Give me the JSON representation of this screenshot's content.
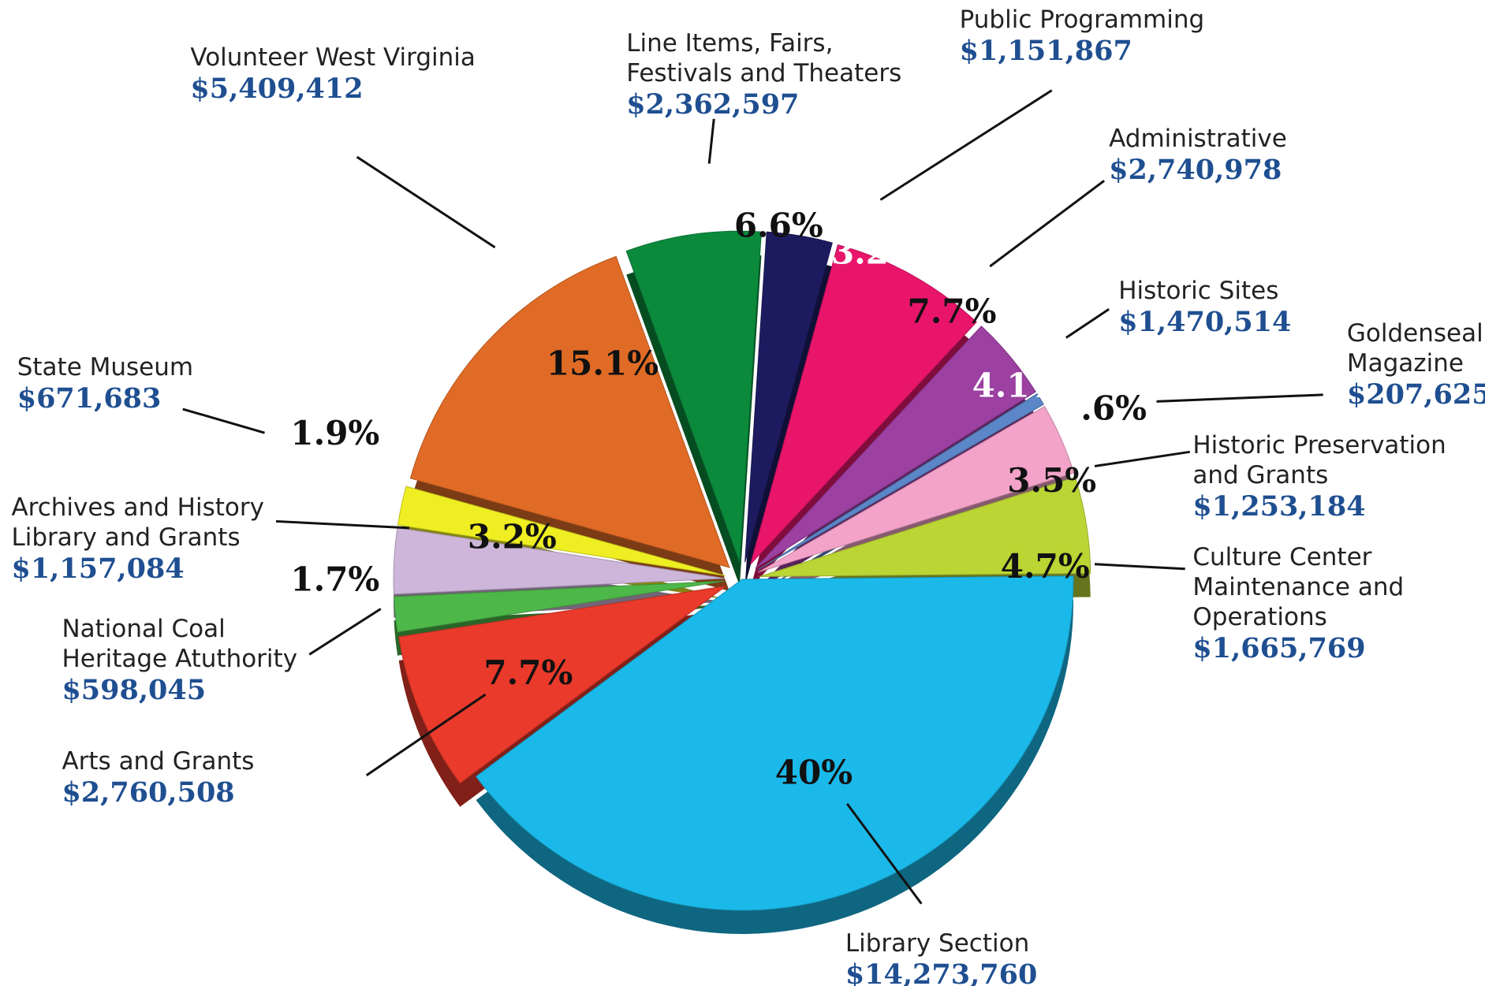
{
  "chart_data": {
    "type": "pie",
    "categories": [
      "Line Items, Fairs, Festivals and Theaters",
      "Public Programming",
      "Administrative",
      "Historic Sites",
      "Goldenseal Magazine",
      "Historic Preservation and Grants",
      "Culture Center Maintenance and Operations",
      "Library Section",
      "Arts and Grants",
      "National Coal Heritage Atuthority",
      "Archives and History Library and Grants",
      "State Museum",
      "Volunteer West Virginia"
    ],
    "values": [
      6.6,
      3.2,
      7.7,
      4.1,
      0.6,
      3.5,
      4.7,
      40,
      7.7,
      1.7,
      3.2,
      1.9,
      15.1
    ],
    "value_labels": [
      "6.6%",
      "3.2%",
      "7.7%",
      "4.1%",
      ".6%",
      "3.5%",
      "4.7%",
      "40%",
      "7.7%",
      "1.7%",
      "3.2%",
      "1.9%",
      "15.1%"
    ],
    "amounts": [
      "$2,362,597",
      "$1,151,867",
      "$2,740,978",
      "$1,470,514",
      "$207,625",
      "$1,253,184",
      "$1,665,769",
      "$14,273,760",
      "$2,760,508",
      "$598,045",
      "$1,157,084",
      "$671,683",
      "$5,409,412"
    ],
    "colors": [
      "#0b8a3c",
      "#1d1b60",
      "#e8156b",
      "#9c40a2",
      "#5b86c8",
      "#f3a3c9",
      "#bad534",
      "#1bb9e9",
      "#e93a2b",
      "#4db849",
      "#cdb6d9",
      "#eeee22",
      "#e06b26"
    ]
  }
}
